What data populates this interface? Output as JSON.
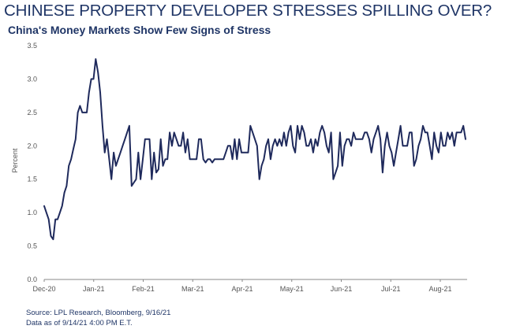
{
  "header": {
    "title": "CHINESE PROPERTY DEVELOPER STRESSES SPILLING OVER?",
    "subtitle": "China's Money Markets Show Few Signs of Stress"
  },
  "footer": {
    "source": "Source: LPL Research, Bloomberg, 9/16/21",
    "asof": "Data as of 9/14/21 4:00 PM E.T."
  },
  "colors": {
    "line": "#1f2a5c",
    "title": "#1f3566",
    "axis": "#888888"
  },
  "chart_data": {
    "type": "line",
    "title": "China's Money Markets Show Few Signs of Stress",
    "xlabel": "",
    "ylabel": "Percent",
    "ylim": [
      0.0,
      3.5
    ],
    "yticks": [
      "0.0",
      "0.5",
      "1.0",
      "1.5",
      "2.0",
      "2.5",
      "3.0",
      "3.5"
    ],
    "xticks": [
      "Dec-20",
      "Jan-21",
      "Feb-21",
      "Mar-21",
      "Apr-21",
      "May-21",
      "Jun-21",
      "Jul-21",
      "Aug-21"
    ],
    "grid": false,
    "series": [
      {
        "values": [
          1.1,
          1.0,
          0.9,
          0.65,
          0.6,
          0.9,
          0.9,
          1.0,
          1.1,
          1.3,
          1.4,
          1.7,
          1.8,
          1.95,
          2.1,
          2.5,
          2.6,
          2.5,
          2.5,
          2.5,
          2.8,
          3.0,
          3.0,
          3.3,
          3.1,
          2.8,
          2.3,
          1.9,
          2.1,
          1.8,
          1.5,
          1.9,
          1.7,
          1.8,
          1.9,
          2.0,
          2.1,
          2.2,
          2.3,
          1.4,
          1.45,
          1.5,
          1.9,
          1.5,
          1.8,
          2.1,
          2.1,
          2.1,
          1.5,
          1.9,
          1.6,
          1.65,
          2.1,
          1.7,
          1.8,
          1.8,
          2.2,
          2.0,
          2.2,
          2.1,
          2.0,
          2.0,
          2.2,
          1.9,
          2.1,
          1.8,
          1.8,
          1.8,
          1.8,
          2.1,
          2.1,
          1.8,
          1.75,
          1.8,
          1.8,
          1.75,
          1.8,
          1.8,
          1.8,
          1.8,
          1.8,
          1.9,
          2.0,
          2.0,
          1.8,
          2.1,
          1.8,
          2.1,
          1.9,
          1.9,
          1.9,
          1.9,
          2.3,
          2.2,
          2.1,
          2.0,
          1.5,
          1.7,
          1.8,
          2.0,
          2.1,
          1.8,
          2.0,
          2.1,
          2.0,
          2.1,
          2.0,
          2.2,
          2.0,
          2.2,
          2.3,
          2.0,
          1.9,
          2.3,
          2.1,
          2.3,
          2.2,
          2.0,
          2.0,
          2.1,
          1.9,
          2.1,
          2.0,
          2.2,
          2.3,
          2.2,
          2.0,
          1.9,
          2.2,
          1.5,
          1.6,
          1.7,
          2.2,
          1.7,
          2.0,
          2.1,
          2.1,
          2.0,
          2.2,
          2.1,
          2.1,
          2.1,
          2.1,
          2.2,
          2.2,
          2.1,
          1.9,
          2.1,
          2.2,
          2.3,
          2.1,
          1.6,
          2.0,
          2.2,
          2.0,
          1.9,
          1.7,
          1.9,
          2.1,
          2.3,
          2.0,
          2.0,
          2.0,
          2.2,
          2.2,
          1.7,
          1.8,
          2.0,
          2.1,
          2.3,
          2.2,
          2.2,
          2.0,
          1.8,
          2.2,
          2.0,
          1.9,
          2.2,
          2.0,
          2.0,
          2.2,
          2.1,
          2.2,
          2.0,
          2.2,
          2.2,
          2.2,
          2.3,
          2.1
        ]
      }
    ]
  }
}
